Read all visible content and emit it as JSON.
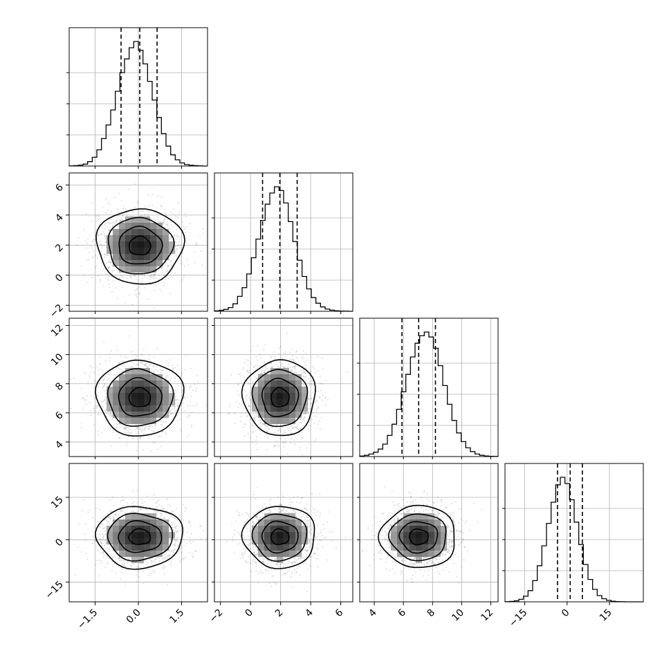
{
  "chart_data": {
    "type": "corner",
    "parameters": [
      {
        "range": [
          -2.4,
          2.4
        ],
        "ticks": [
          -1.5,
          0.0,
          1.5
        ],
        "tick_labels": [
          "−1.5",
          "0.0",
          "1.5"
        ],
        "quantiles": [
          -0.6,
          0.05,
          0.65
        ],
        "hist": [
          0.001,
          0.003,
          0.007,
          0.015,
          0.035,
          0.07,
          0.13,
          0.22,
          0.33,
          0.45,
          0.6,
          0.75,
          0.86,
          0.95,
          1.0,
          0.93,
          0.82,
          0.68,
          0.53,
          0.39,
          0.26,
          0.16,
          0.09,
          0.05,
          0.025,
          0.012,
          0.006,
          0.003,
          0.001,
          0.0
        ]
      },
      {
        "range": [
          -2.4,
          6.8
        ],
        "ticks": [
          -2,
          0,
          2,
          4,
          6
        ],
        "tick_labels": [
          "−2",
          "0",
          "2",
          "4",
          "6"
        ],
        "quantiles": [
          0.8,
          1.95,
          3.1
        ],
        "hist": [
          0.003,
          0.008,
          0.015,
          0.03,
          0.06,
          0.12,
          0.19,
          0.3,
          0.43,
          0.58,
          0.73,
          0.86,
          0.95,
          1.0,
          0.97,
          0.87,
          0.72,
          0.56,
          0.41,
          0.28,
          0.18,
          0.11,
          0.065,
          0.035,
          0.018,
          0.009,
          0.004,
          0.002,
          0.001,
          0.0
        ]
      },
      {
        "range": [
          3.0,
          12.5
        ],
        "ticks": [
          4,
          6,
          8,
          10,
          12
        ],
        "tick_labels": [
          "4",
          "6",
          "8",
          "10",
          "12"
        ],
        "quantiles": [
          5.9,
          7.05,
          8.2
        ],
        "hist": [
          0.004,
          0.01,
          0.02,
          0.035,
          0.06,
          0.1,
          0.17,
          0.26,
          0.38,
          0.52,
          0.66,
          0.8,
          0.91,
          0.97,
          1.0,
          0.96,
          0.87,
          0.73,
          0.57,
          0.42,
          0.29,
          0.19,
          0.12,
          0.07,
          0.04,
          0.02,
          0.01,
          0.005,
          0.002,
          0.001
        ]
      },
      {
        "range": [
          -22,
          27
        ],
        "ticks": [
          -15,
          0,
          15
        ],
        "tick_labels": [
          "−15",
          "0",
          "15"
        ],
        "quantiles": [
          -3.4,
          1.1,
          5.4
        ],
        "hist": [
          0.001,
          0.003,
          0.008,
          0.02,
          0.045,
          0.09,
          0.17,
          0.29,
          0.45,
          0.63,
          0.8,
          0.94,
          1.0,
          0.95,
          0.82,
          0.64,
          0.46,
          0.3,
          0.18,
          0.1,
          0.05,
          0.025,
          0.012,
          0.005,
          0.002,
          0.001,
          0.0,
          0.0,
          0.0,
          0.0
        ]
      }
    ],
    "pairs": [
      {
        "row": 1,
        "col": 0,
        "center": [
          0.05,
          1.95
        ],
        "sigma": [
          0.75,
          1.25
        ]
      },
      {
        "row": 2,
        "col": 0,
        "center": [
          0.05,
          7.05
        ],
        "sigma": [
          0.75,
          1.3
        ]
      },
      {
        "row": 2,
        "col": 1,
        "center": [
          1.95,
          7.05
        ],
        "sigma": [
          1.2,
          1.3
        ]
      },
      {
        "row": 3,
        "col": 0,
        "center": [
          0.05,
          1.0
        ],
        "sigma": [
          0.75,
          5.5
        ]
      },
      {
        "row": 3,
        "col": 1,
        "center": [
          1.95,
          1.0
        ],
        "sigma": [
          1.2,
          5.5
        ]
      },
      {
        "row": 3,
        "col": 2,
        "center": [
          7.05,
          1.0
        ],
        "sigma": [
          1.3,
          5.5
        ]
      }
    ],
    "contour_levels_sigma": [
      0.5,
      1.0,
      1.5,
      2.0
    ],
    "grid": true,
    "colors": {
      "ink": "#000000",
      "grid": "#b0b0b0",
      "background": "#ffffff"
    }
  }
}
